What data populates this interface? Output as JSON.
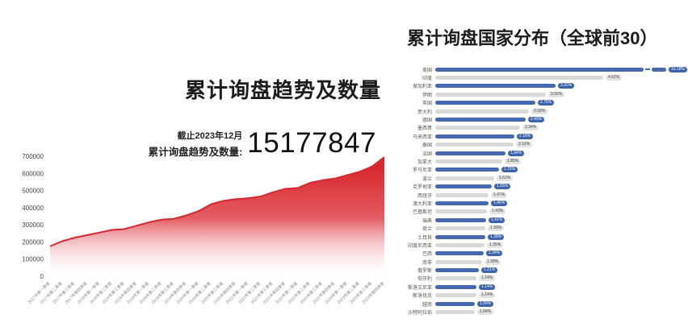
{
  "left_chart": {
    "title": "累计询盘趋势及数量",
    "as_of": "截止2023年12月",
    "total_label": "累计询盘趋势及数量:",
    "total_value": "15177847",
    "accent_color": "#d7282f"
  },
  "right_chart": {
    "title": "累计询盘国家分布（全球前30）",
    "blue_color": "#4569ae",
    "gray_color": "#d8d8d8"
  },
  "chart_data": [
    {
      "type": "area",
      "title": "累计询盘趋势及数量",
      "annotation": {
        "as_of": "截止2023年12月",
        "label": "累计询盘趋势及数量:",
        "value": "15177847"
      },
      "x": [
        "2017年第一季度",
        "2017年第二季度",
        "2017年第三季度",
        "2017年第四季度",
        "2018年第一季度",
        "2018年第二季度",
        "2018年第三季度",
        "2018年第四季度",
        "2019年第一季度",
        "2019年第二季度",
        "2019年第三季度",
        "2019年第四季度",
        "2020年第一季度",
        "2020年第二季度",
        "2020年第三季度",
        "2020年第四季度",
        "2021年第一季度",
        "2021年第二季度",
        "2021年第三季度",
        "2021年第四季度",
        "2022年第一季度",
        "2022年第二季度",
        "2022年第三季度",
        "2022年第四季度",
        "2023年第一季度",
        "2023年第二季度",
        "2023年第三季度",
        "2023年第四季度"
      ],
      "values": [
        175000,
        205000,
        225000,
        240000,
        255000,
        270000,
        275000,
        295000,
        315000,
        330000,
        335000,
        355000,
        380000,
        420000,
        440000,
        450000,
        455000,
        465000,
        490000,
        510000,
        515000,
        545000,
        560000,
        570000,
        590000,
        610000,
        640000,
        695000
      ],
      "ylim": [
        0,
        700000
      ],
      "yticks": [
        0,
        100000,
        200000,
        300000,
        400000,
        500000,
        600000,
        700000
      ],
      "grid": false,
      "x_tick_rotation": -45,
      "area_color": "#d7282f",
      "legend": "none"
    },
    {
      "type": "bar",
      "orientation": "horizontal",
      "title": "累计询盘国家分布（全球前30）",
      "categories": [
        "美国",
        "印度",
        "保加利亚",
        "伊朗",
        "英国",
        "意大利",
        "德国",
        "墨西哥",
        "马来西亚",
        "泰国",
        "法国",
        "加拿大",
        "罗马尼亚",
        "波兰",
        "克罗地亚",
        "西班牙",
        "澳大利亚",
        "巴基斯坦",
        "瑞典",
        "荷兰",
        "土耳其",
        "印度尼西亚",
        "巴西",
        "南非",
        "俄罗斯",
        "匈牙利",
        "斯洛文尼亚",
        "斯洛伐克",
        "越南",
        "沙特阿拉伯"
      ],
      "values": [
        10.18,
        4.62,
        3.32,
        3.05,
        2.75,
        2.58,
        2.49,
        2.34,
        2.18,
        2.16,
        1.94,
        1.85,
        1.75,
        1.62,
        1.55,
        1.47,
        1.46,
        1.43,
        1.41,
        1.38,
        1.38,
        1.35,
        1.34,
        1.28,
        1.21,
        1.14,
        1.14,
        1.14,
        1.09,
        1.08
      ],
      "labels": [
        "10.18%",
        "4.62%",
        "3.32%",
        "3.05%",
        "2.75%",
        "2.58%",
        "2.49%",
        "2.34%",
        "2.18%",
        "2.16%",
        "1.94%",
        "1.85%",
        "1.75%",
        "1.62%",
        "1.55%",
        "1.47%",
        "1.46%",
        "1.43%",
        "1.41%",
        "1.38%",
        "1.38%",
        "1.35%",
        "1.34%",
        "1.28%",
        "1.21%",
        "1.14%",
        "1.14%",
        "1.14%",
        "1.09%",
        "1.08%"
      ],
      "axis_break_on": "美国",
      "color_pattern": "alternating blue/gray by rank",
      "legend": "none"
    }
  ]
}
